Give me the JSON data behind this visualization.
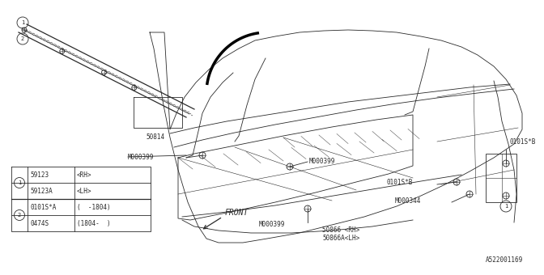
{
  "bg_color": "#ffffff",
  "line_color": "#2a2a2a",
  "fig_id": "A522001169",
  "parts_table": {
    "circle1_parts": [
      {
        "code": "59123",
        "desc": "<RH>"
      },
      {
        "code": "59123A",
        "desc": "<LH>"
      }
    ],
    "circle2_parts": [
      {
        "code": "0101S*A",
        "desc": "(  -1804)"
      },
      {
        "code": "0474S",
        "desc": "(1804-  )"
      }
    ]
  },
  "labels": {
    "M000399_left": "M000399",
    "M000399_mid": "M000399",
    "M000399_inner": "M000399",
    "M000344": "M000344",
    "50814": "50814",
    "50866rh": "50866 <RH>",
    "50866lh": "50866A<LH>",
    "0101SB_left": "0101S*B",
    "0101SB_right": "0101S*B",
    "FRONT": "FRONT"
  },
  "font_size": 5.5
}
